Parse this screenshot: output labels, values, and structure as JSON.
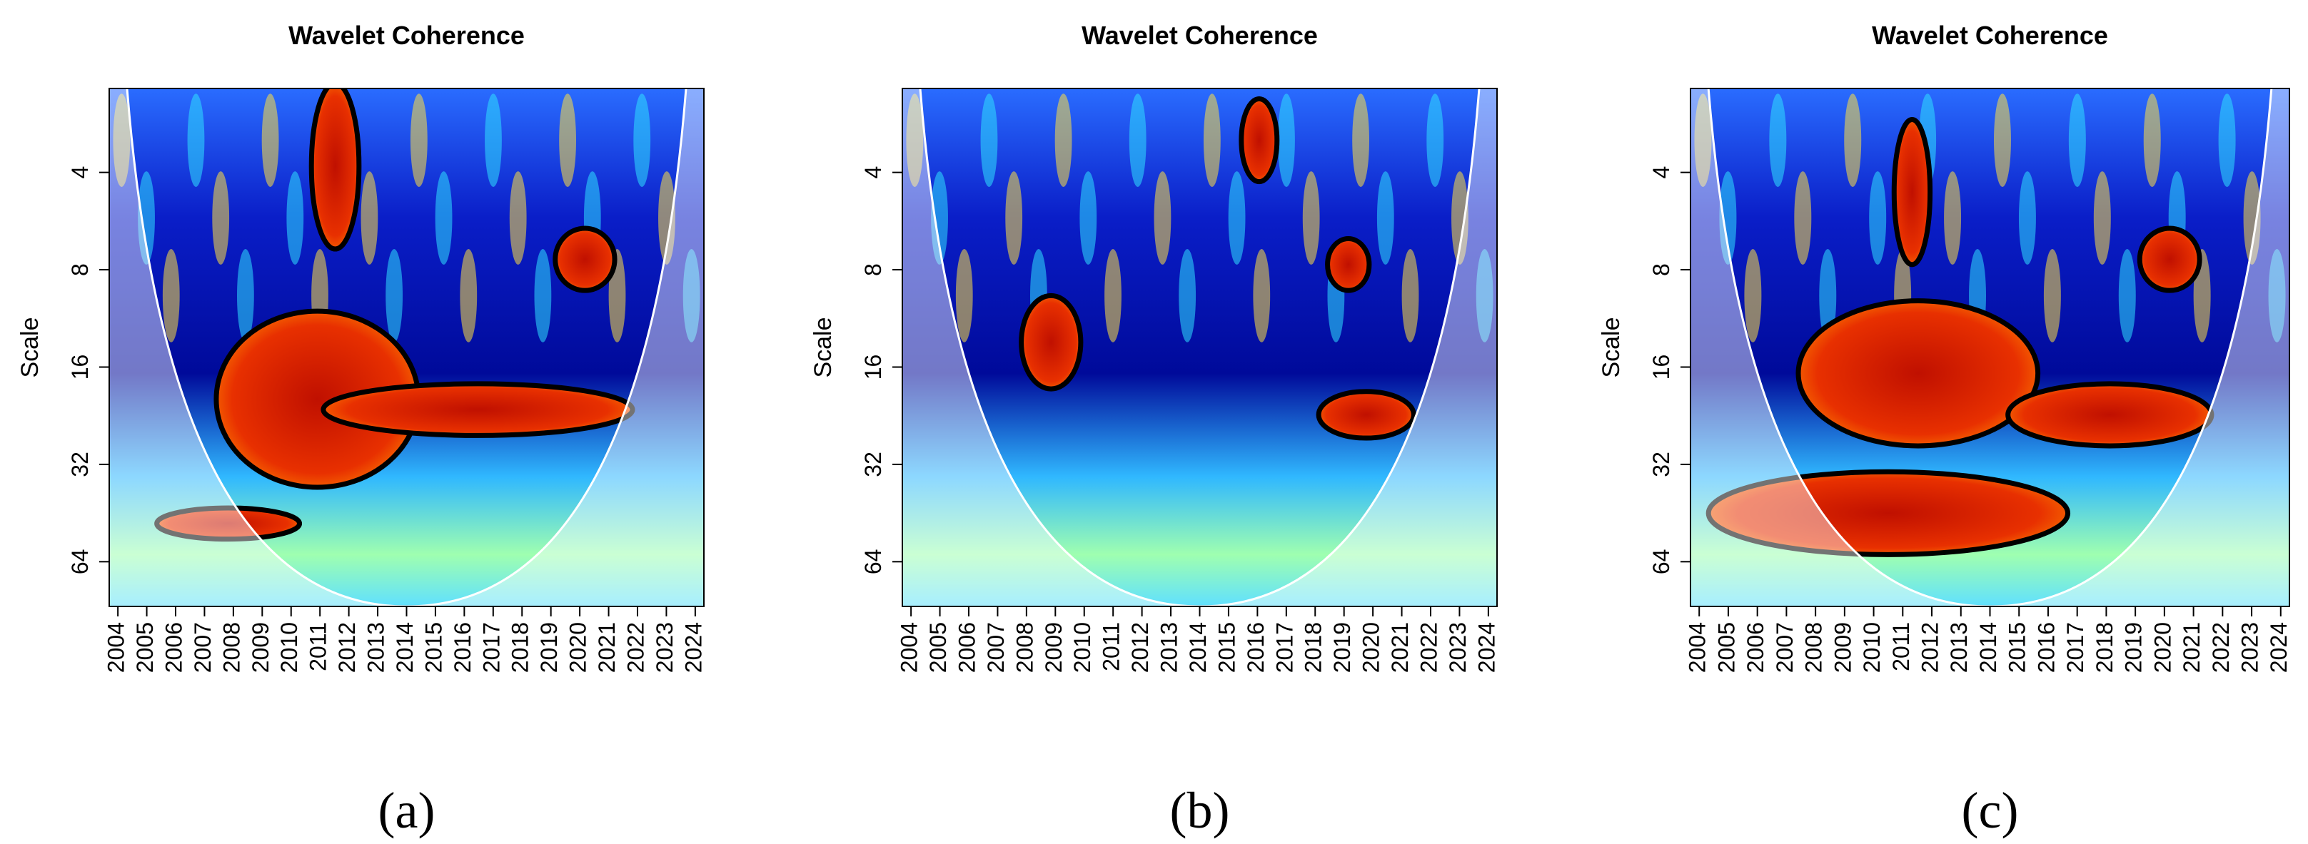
{
  "chart_data": [
    {
      "type": "wavelet",
      "title": "Wavelet Coherence",
      "ylabel": "Scale",
      "caption": "(a)",
      "xlim": [
        2003.7,
        2024.3
      ],
      "xticks": [
        2004,
        2005,
        2006,
        2007,
        2008,
        2009,
        2010,
        2011,
        2012,
        2013,
        2014,
        2015,
        2016,
        2017,
        2018,
        2019,
        2020,
        2021,
        2022,
        2023,
        2024
      ],
      "ylim": [
        2.2,
        88
      ],
      "yticks": [
        4,
        8,
        16,
        32,
        64
      ],
      "log_scale": true,
      "y_reversed": true
    },
    {
      "type": "wavelet",
      "title": "Wavelet Coherence",
      "ylabel": "Scale",
      "caption": "(b)",
      "xlim": [
        2003.7,
        2024.3
      ],
      "xticks": [
        2004,
        2005,
        2006,
        2007,
        2008,
        2009,
        2010,
        2011,
        2012,
        2013,
        2014,
        2015,
        2016,
        2017,
        2018,
        2019,
        2020,
        2021,
        2022,
        2023,
        2024
      ],
      "ylim": [
        2.2,
        88
      ],
      "yticks": [
        4,
        8,
        16,
        32,
        64
      ],
      "log_scale": true,
      "y_reversed": true
    },
    {
      "type": "wavelet",
      "title": "Wavelet Coherence",
      "ylabel": "Scale",
      "caption": "(c)",
      "xlim": [
        2003.7,
        2024.3
      ],
      "xticks": [
        2004,
        2005,
        2006,
        2007,
        2008,
        2009,
        2010,
        2011,
        2012,
        2013,
        2014,
        2015,
        2016,
        2017,
        2018,
        2019,
        2020,
        2021,
        2022,
        2023,
        2024
      ],
      "ylim": [
        2.2,
        88
      ],
      "yticks": [
        4,
        8,
        16,
        32,
        64
      ],
      "log_scale": true,
      "y_reversed": true
    }
  ]
}
